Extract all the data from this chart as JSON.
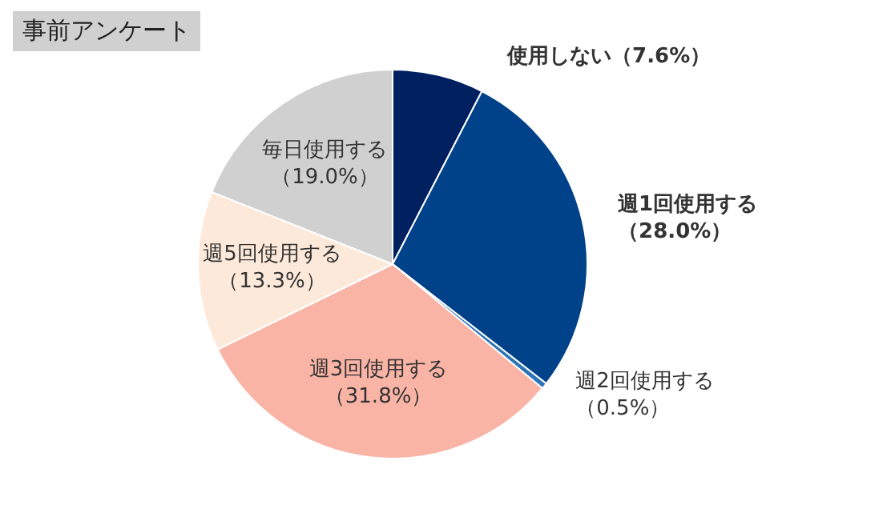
{
  "chart_data": {
    "type": "pie",
    "title": "事前アンケート",
    "categories": [
      "使用しない",
      "週1回使用する",
      "週2回使用する",
      "週3回使用する",
      "週5回使用する",
      "毎日使用する"
    ],
    "values": [
      7.6,
      28.0,
      0.5,
      31.8,
      13.3,
      19.0
    ],
    "colors": [
      "#002060",
      "#004289",
      "#2e75b6",
      "#f9b4a6",
      "#fde9d9",
      "#d0d0d0"
    ],
    "value_labels": [
      "（7.6%）",
      "（28.0%）",
      "（0.5%）",
      "（31.8%）",
      "（13.3%）",
      "（19.0%）"
    ],
    "legend": false
  }
}
